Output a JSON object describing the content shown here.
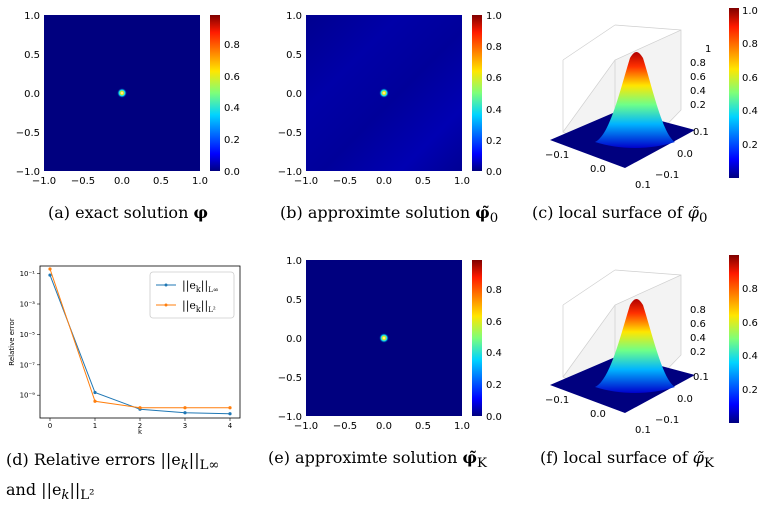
{
  "captions": {
    "a": {
      "prefix": "(a)  exact solution ",
      "sym": "φ"
    },
    "b": {
      "prefix": "(b)  approximte solution ",
      "sym": "φ̃",
      "sub": "0"
    },
    "c": {
      "prefix": "(c)  local surface of ",
      "sym": "φ̃",
      "sub": "0"
    },
    "d1": "(d)  Relative errors  ||e",
    "d1b": "||",
    "d1c": "L∞",
    "d2": "and ||e",
    "d2b": "||",
    "d2c": "L²",
    "e": {
      "prefix": "(e)  approximte solution ",
      "sym": "φ̃",
      "sub": "K"
    },
    "f": {
      "prefix": "(f)  local surface of ",
      "sym": "φ̃",
      "sub": "K"
    }
  },
  "heatmap_ticks": {
    "x": [
      "−1.0",
      "−0.5",
      "0.0",
      "0.5",
      "1.0"
    ],
    "y": [
      "1.0",
      "0.5",
      "0.0",
      "−0.5",
      "−1.0"
    ]
  },
  "colorbar_ticks": {
    "a": [
      "0.8",
      "0.6",
      "0.4",
      "0.2",
      "0.0"
    ],
    "b": [
      "1.0",
      "0.8",
      "0.6",
      "0.4",
      "0.2",
      "0.0"
    ],
    "c": [
      "1.0",
      "0.8",
      "0.6",
      "0.4",
      "0.2"
    ],
    "e": [
      "0.8",
      "0.6",
      "0.4",
      "0.2",
      "0.0"
    ],
    "f": [
      "0.8",
      "0.6",
      "0.4",
      "0.2"
    ]
  },
  "surface_ticks": {
    "x": [
      "−0.1",
      "0.0",
      "0.1"
    ],
    "y": [
      "−0.1",
      "0.0",
      "0.1"
    ],
    "z_c": [
      "1",
      "0.8",
      "0.6",
      "0.4",
      "0.2"
    ],
    "z_f": [
      "0.8",
      "0.6",
      "0.4",
      "0.2"
    ]
  },
  "chart_data": {
    "type": "line",
    "x": [
      0,
      1,
      2,
      3,
      4
    ],
    "xlabel": "k",
    "ylabel": "Relative error",
    "yscale": "log",
    "y_ticks": [
      "10⁻¹",
      "10⁻³",
      "10⁻⁵",
      "10⁻⁷",
      "10⁻⁹"
    ],
    "x_ticks": [
      "0",
      "1",
      "2",
      "3",
      "4"
    ],
    "legend_placement": "top-right",
    "series": [
      {
        "name": "||e_k||_L∞",
        "label_main": "||e",
        "label_sub": "k",
        "label_tail": "||",
        "label_norm": "L∞",
        "color": "#1f77b4",
        "values": [
          0.08,
          1.5e-09,
          1.2e-10,
          7e-11,
          6e-11
        ]
      },
      {
        "name": "||e_k||_L²",
        "label_main": "||e",
        "label_sub": "k",
        "label_tail": "||",
        "label_norm": "L²",
        "color": "#ff7f0e",
        "values": [
          0.2,
          4e-10,
          1.5e-10,
          1.5e-10,
          1.5e-10
        ]
      }
    ]
  },
  "colors": {
    "background_blue": "#00007f",
    "peak_red": "#7f0000"
  }
}
